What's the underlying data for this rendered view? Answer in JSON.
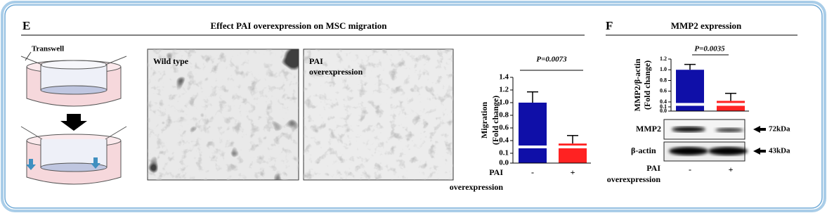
{
  "figure": {
    "panels": [
      {
        "label": "E",
        "title": "Effect PAI overexpression on MSC migration",
        "transwell_label": "Transwell",
        "images": [
          [
            "Wild type"
          ],
          [
            "PAI",
            "overexpression"
          ]
        ]
      },
      {
        "label": "F",
        "title": "MMP2 expression",
        "blots": [
          {
            "name": "MMP2",
            "size": "72kDa"
          },
          {
            "name": "β-actin",
            "size": "43kDa"
          }
        ]
      }
    ]
  },
  "chart_data": [
    {
      "type": "bar",
      "ylabel": [
        "Migration",
        "(Fold change)"
      ],
      "xlabel": [
        "PAI",
        "overexpression"
      ],
      "categories": [
        "-",
        "+"
      ],
      "values": [
        1.0,
        0.33
      ],
      "errors": [
        0.17,
        0.15
      ],
      "colors": [
        "#0f0fa8",
        "#ff2222"
      ],
      "ylim": [
        0,
        1.4
      ],
      "axis_break": [
        0.1,
        0.4
      ],
      "yticks": [
        {
          "value": 0,
          "label": "0.0"
        },
        0.1,
        0.4,
        0.6,
        0.8,
        {
          "value": 1,
          "label": "1.0"
        },
        1.2,
        1.4
      ],
      "annotation": "P=0.0073"
    },
    {
      "type": "bar",
      "ylabel": [
        "MMP2/β-actin",
        "(Fold change)"
      ],
      "xlabel": [
        "PAI",
        "overexpression"
      ],
      "categories": [
        "-",
        "+"
      ],
      "values": [
        1.0,
        0.42
      ],
      "errors": [
        0.1,
        0.14
      ],
      "colors": [
        "#0f0fa8",
        "#ff2222"
      ],
      "ylim": [
        0,
        1.2
      ],
      "axis_break": [
        0.1,
        0.4
      ],
      "yticks": [
        {
          "value": 0,
          "label": "0.0"
        },
        0.1,
        0.4,
        0.6,
        0.8,
        {
          "value": 1,
          "label": "1.0"
        },
        1.2
      ],
      "annotation": "P=0.0035"
    }
  ]
}
